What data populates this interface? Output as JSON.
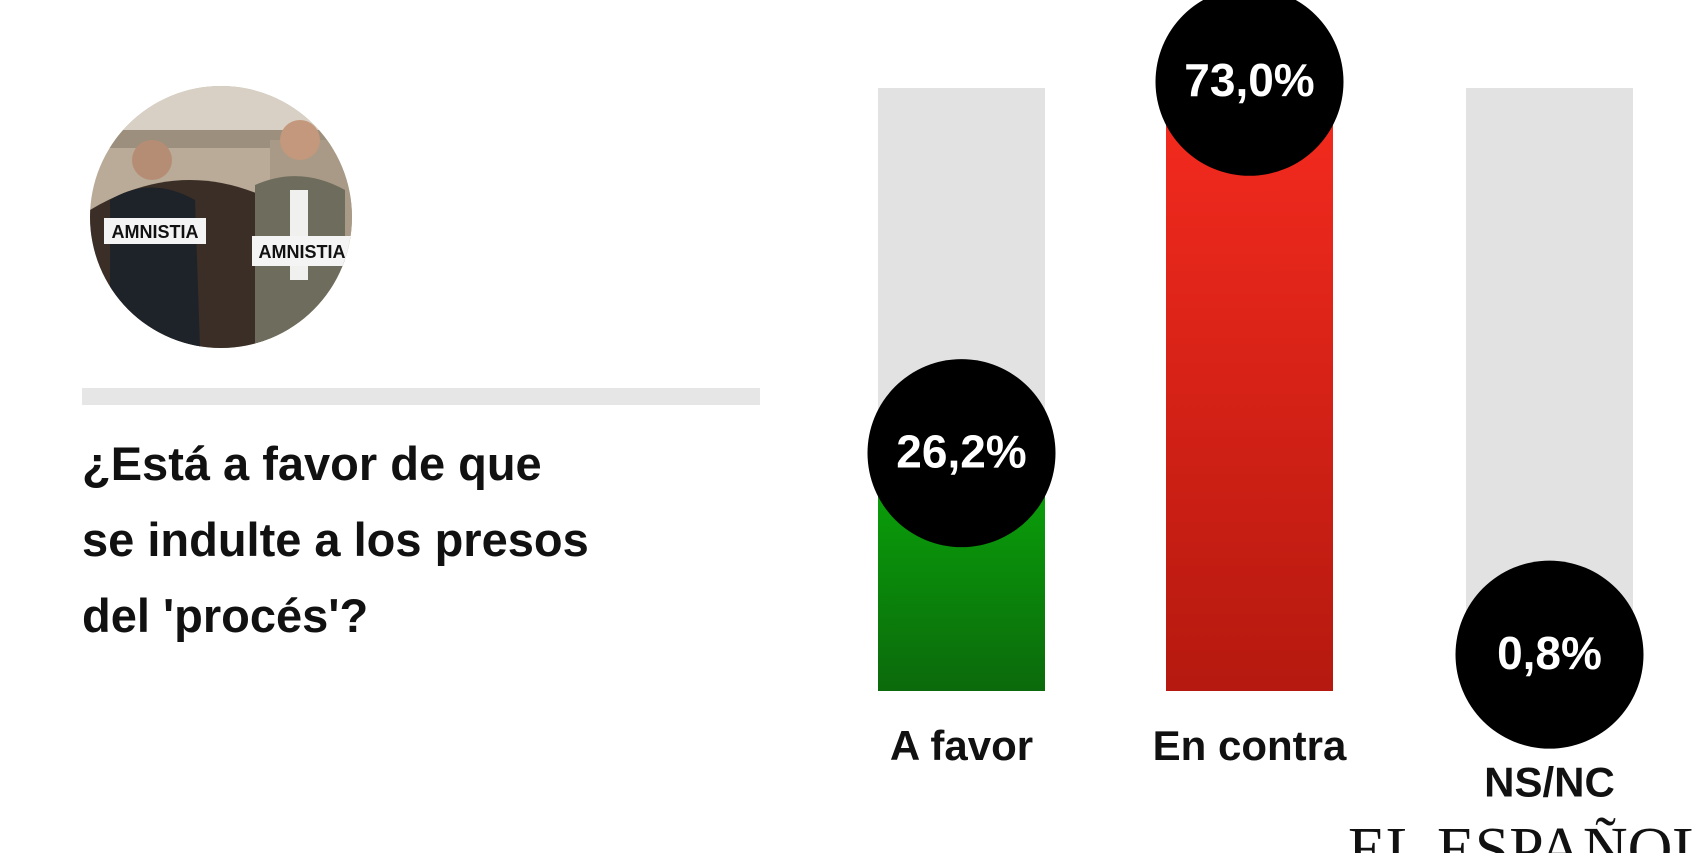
{
  "chart_data": {
    "type": "bar",
    "question": [
      "¿Está a favor de que",
      "se indulte a los presos",
      "del 'procés'?"
    ],
    "categories": [
      "A favor",
      "En contra",
      "NS/NC"
    ],
    "values": [
      26.2,
      73.0,
      0.8
    ],
    "value_labels": [
      "26,2%",
      "73,0%",
      "0,8%"
    ],
    "colors": [
      [
        "#0aa00a",
        "#0b6a0b"
      ],
      [
        "#f42a1e",
        "#b5190f"
      ],
      [
        "#999999",
        "#777777"
      ]
    ],
    "track_color": "#e2e2e2",
    "ylim": [
      0,
      76
    ],
    "photo_text": [
      "AMNISTIA",
      "AMNISTIA"
    ],
    "brand": "EL ESPAÑOL"
  }
}
